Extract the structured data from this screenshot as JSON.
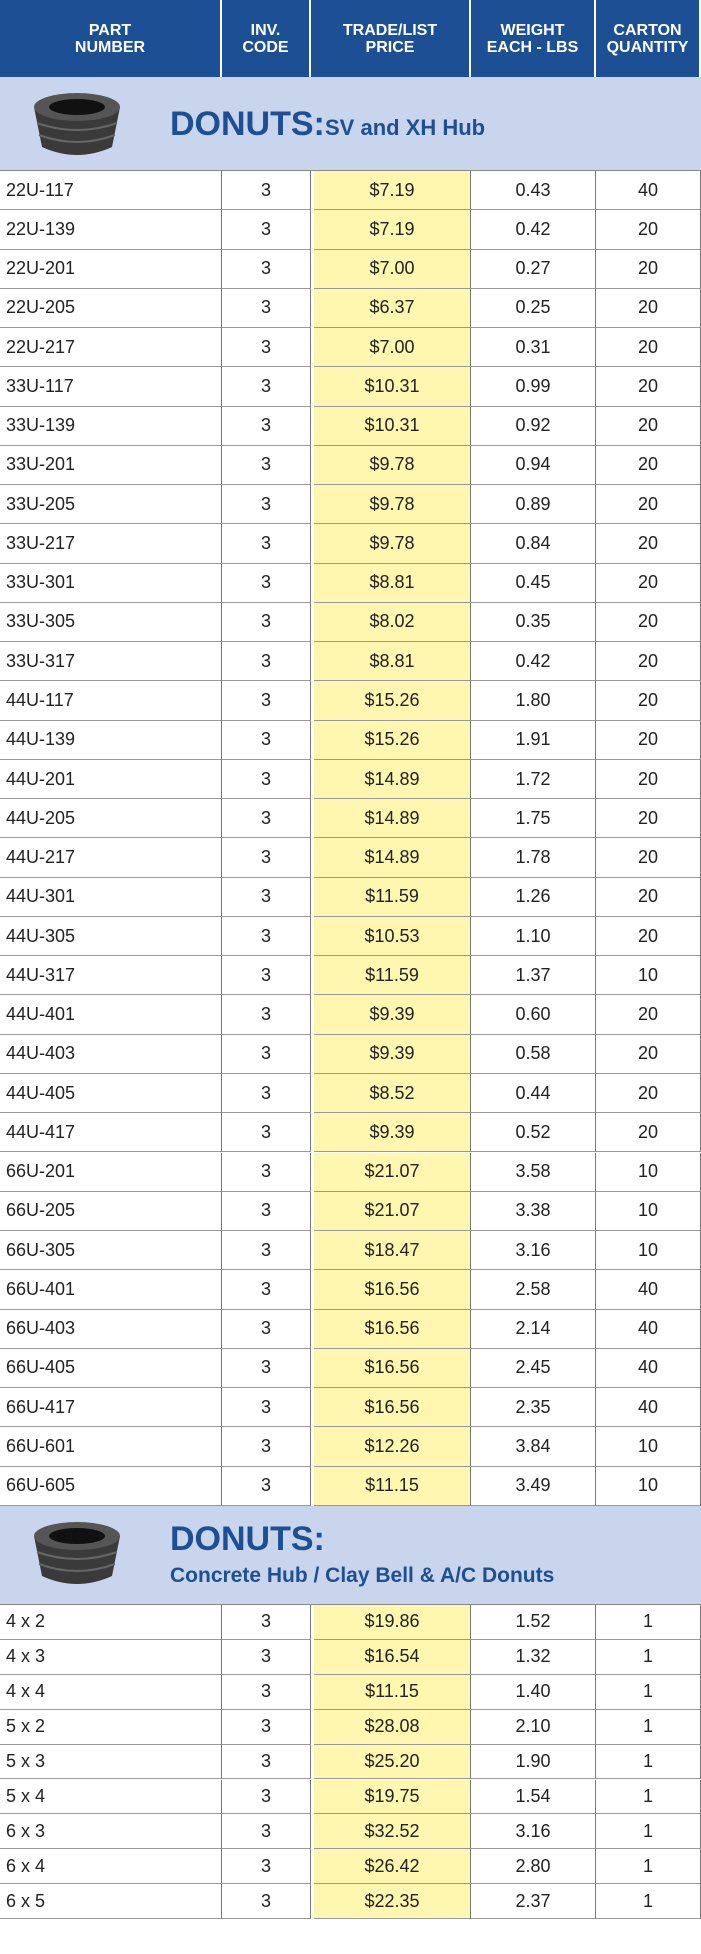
{
  "header": {
    "columns": [
      "PART\nNUMBER",
      "INV.\nCODE",
      "TRADE/LIST\nPRICE",
      "WEIGHT\nEACH - LBS",
      "CARTON\nQUANTITY"
    ]
  },
  "sections": [
    {
      "title": "DONUTS:",
      "subtitle": "SV and XH Hub",
      "rows": [
        [
          "22U-117",
          "3",
          "$7.19",
          "0.43",
          "40"
        ],
        [
          "22U-139",
          "3",
          "$7.19",
          "0.42",
          "20"
        ],
        [
          "22U-201",
          "3",
          "$7.00",
          "0.27",
          "20"
        ],
        [
          "22U-205",
          "3",
          "$6.37",
          "0.25",
          "20"
        ],
        [
          "22U-217",
          "3",
          "$7.00",
          "0.31",
          "20"
        ],
        [
          "33U-117",
          "3",
          "$10.31",
          "0.99",
          "20"
        ],
        [
          "33U-139",
          "3",
          "$10.31",
          "0.92",
          "20"
        ],
        [
          "33U-201",
          "3",
          "$9.78",
          "0.94",
          "20"
        ],
        [
          "33U-205",
          "3",
          "$9.78",
          "0.89",
          "20"
        ],
        [
          "33U-217",
          "3",
          "$9.78",
          "0.84",
          "20"
        ],
        [
          "33U-301",
          "3",
          "$8.81",
          "0.45",
          "20"
        ],
        [
          "33U-305",
          "3",
          "$8.02",
          "0.35",
          "20"
        ],
        [
          "33U-317",
          "3",
          "$8.81",
          "0.42",
          "20"
        ],
        [
          "44U-117",
          "3",
          "$15.26",
          "1.80",
          "20"
        ],
        [
          "44U-139",
          "3",
          "$15.26",
          "1.91",
          "20"
        ],
        [
          "44U-201",
          "3",
          "$14.89",
          "1.72",
          "20"
        ],
        [
          "44U-205",
          "3",
          "$14.89",
          "1.75",
          "20"
        ],
        [
          "44U-217",
          "3",
          "$14.89",
          "1.78",
          "20"
        ],
        [
          "44U-301",
          "3",
          "$11.59",
          "1.26",
          "20"
        ],
        [
          "44U-305",
          "3",
          "$10.53",
          "1.10",
          "20"
        ],
        [
          "44U-317",
          "3",
          "$11.59",
          "1.37",
          "10"
        ],
        [
          "44U-401",
          "3",
          "$9.39",
          "0.60",
          "20"
        ],
        [
          "44U-403",
          "3",
          "$9.39",
          "0.58",
          "20"
        ],
        [
          "44U-405",
          "3",
          "$8.52",
          "0.44",
          "20"
        ],
        [
          "44U-417",
          "3",
          "$9.39",
          "0.52",
          "20"
        ],
        [
          "66U-201",
          "3",
          "$21.07",
          "3.58",
          "10"
        ],
        [
          "66U-205",
          "3",
          "$21.07",
          "3.38",
          "10"
        ],
        [
          "66U-305",
          "3",
          "$18.47",
          "3.16",
          "10"
        ],
        [
          "66U-401",
          "3",
          "$16.56",
          "2.58",
          "40"
        ],
        [
          "66U-403",
          "3",
          "$16.56",
          "2.14",
          "40"
        ],
        [
          "66U-405",
          "3",
          "$16.56",
          "2.45",
          "40"
        ],
        [
          "66U-417",
          "3",
          "$16.56",
          "2.35",
          "40"
        ],
        [
          "66U-601",
          "3",
          "$12.26",
          "3.84",
          "10"
        ],
        [
          "66U-605",
          "3",
          "$11.15",
          "3.49",
          "10"
        ]
      ]
    },
    {
      "title": "DONUTS:",
      "subtitle": "Concrete Hub / Clay Bell & A/C Donuts",
      "rows": [
        [
          "4 x 2",
          "3",
          "$19.86",
          "1.52",
          "1"
        ],
        [
          "4 x 3",
          "3",
          "$16.54",
          "1.32",
          "1"
        ],
        [
          "4 x 4",
          "3",
          "$11.15",
          "1.40",
          "1"
        ],
        [
          "5 x 2",
          "3",
          "$28.08",
          "2.10",
          "1"
        ],
        [
          "5 x 3",
          "3",
          "$25.20",
          "1.90",
          "1"
        ],
        [
          "5 x 4",
          "3",
          "$19.75",
          "1.54",
          "1"
        ],
        [
          "6 x 3",
          "3",
          "$32.52",
          "3.16",
          "1"
        ],
        [
          "6 x 4",
          "3",
          "$26.42",
          "2.80",
          "1"
        ],
        [
          "6 x 5",
          "3",
          "$22.35",
          "2.37",
          "1"
        ]
      ]
    }
  ]
}
